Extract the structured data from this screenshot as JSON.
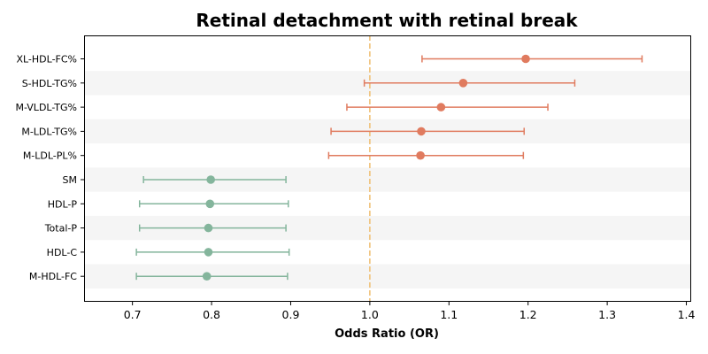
{
  "chart_data": {
    "type": "scatter",
    "subtype": "forest-plot",
    "title": "Retinal detachment with retinal break",
    "xlabel": "Odds Ratio (OR)",
    "xlim": [
      0.64,
      1.405
    ],
    "xticks": [
      "0.7",
      "0.8",
      "0.9",
      "1.0",
      "1.1",
      "1.2",
      "1.3",
      "1.4"
    ],
    "xtick_values": [
      0.7,
      0.8,
      0.9,
      1.0,
      1.1,
      1.2,
      1.3,
      1.4
    ],
    "reference_line": 1.0,
    "grid": false,
    "row_banding": true,
    "colors": {
      "risk": "#e07b5f",
      "protective": "#84b59c",
      "reference": "#f0c27a",
      "band": "#f5f5f5"
    },
    "rows": [
      {
        "label": "XL-HDL-FC%",
        "or": 1.197,
        "lower": 1.066,
        "upper": 1.344,
        "group": "risk"
      },
      {
        "label": "S-HDL-TG%",
        "or": 1.118,
        "lower": 0.993,
        "upper": 1.259,
        "group": "risk"
      },
      {
        "label": "M-VLDL-TG%",
        "or": 1.09,
        "lower": 0.971,
        "upper": 1.225,
        "group": "risk"
      },
      {
        "label": "M-LDL-TG%",
        "or": 1.065,
        "lower": 0.951,
        "upper": 1.195,
        "group": "risk"
      },
      {
        "label": "M-LDL-PL%",
        "or": 1.064,
        "lower": 0.948,
        "upper": 1.194,
        "group": "risk"
      },
      {
        "label": "SM",
        "or": 0.799,
        "lower": 0.714,
        "upper": 0.894,
        "group": "protective"
      },
      {
        "label": "HDL-P",
        "or": 0.798,
        "lower": 0.709,
        "upper": 0.897,
        "group": "protective"
      },
      {
        "label": "Total-P",
        "or": 0.796,
        "lower": 0.709,
        "upper": 0.894,
        "group": "protective"
      },
      {
        "label": "HDL-C",
        "or": 0.796,
        "lower": 0.705,
        "upper": 0.898,
        "group": "protective"
      },
      {
        "label": "M-HDL-FC",
        "or": 0.794,
        "lower": 0.705,
        "upper": 0.896,
        "group": "protective"
      }
    ]
  }
}
